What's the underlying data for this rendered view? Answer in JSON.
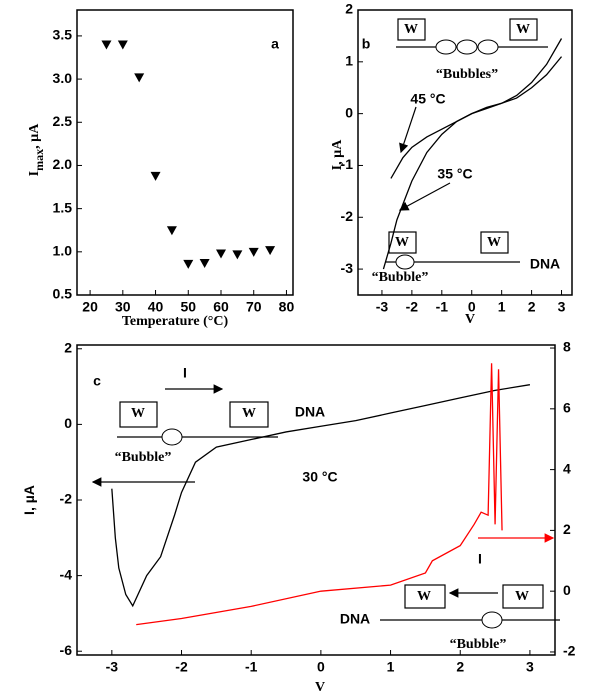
{
  "chart_data": [
    {
      "type": "scatter",
      "xlabel": "Temperature (°C)",
      "ylabel": "I",
      "ylabel_sub": "max",
      "ylabel_unit": ", µA",
      "annotations": [
        "a"
      ],
      "x": [
        25,
        30,
        35,
        40,
        45,
        50,
        55,
        60,
        65,
        70,
        75
      ],
      "values": [
        3.4,
        3.4,
        3.02,
        1.88,
        1.25,
        0.86,
        0.87,
        0.98,
        0.97,
        1.0,
        1.02
      ],
      "color": "#000000",
      "xlim": [
        16,
        82
      ],
      "xticks": [
        20,
        30,
        40,
        50,
        60,
        70,
        80
      ],
      "ylim": [
        0.5,
        3.8
      ],
      "yticks": [
        0.5,
        {
          "value": 1,
          "label": "1.0"
        },
        1.5,
        {
          "value": 2,
          "label": "2.0"
        },
        2.5,
        {
          "value": 3,
          "label": "3.0"
        },
        3.5
      ]
    },
    {
      "type": "line",
      "xlabel": "V",
      "ylabel": "I, µA",
      "annotations": [
        "b",
        "45 °C",
        "35 °C",
        "W",
        "W",
        "“Bubbles”",
        "W",
        "W",
        "“Bubble”",
        "DNA"
      ],
      "series": [
        {
          "name": "45 °C",
          "color": "#000000",
          "x": [
            -2.7,
            -2.5,
            -2.3,
            -2,
            -1.5,
            -1,
            -0.5,
            0,
            0.5,
            1,
            1.5,
            2,
            2.5,
            3
          ],
          "values": [
            -1.25,
            -1.05,
            -0.85,
            -0.65,
            -0.45,
            -0.3,
            -0.15,
            0,
            0.1,
            0.2,
            0.35,
            0.6,
            0.95,
            1.45
          ]
        },
        {
          "name": "35 °C",
          "color": "#000000",
          "x": [
            -2.95,
            -2.7,
            -2.5,
            -2.2,
            -2,
            -1.5,
            -1,
            -0.5,
            0,
            0.5,
            1,
            1.5,
            2,
            2.5,
            3
          ],
          "values": [
            -3,
            -2.5,
            -2.05,
            -1.6,
            -1.3,
            -0.75,
            -0.4,
            -0.15,
            0,
            0.12,
            0.2,
            0.3,
            0.5,
            0.75,
            1.1
          ]
        }
      ],
      "xlim": [
        -3.8,
        3.35
      ],
      "xticks": [
        -3,
        -2,
        -1,
        0,
        1,
        2,
        3
      ],
      "ylim": [
        -3.5,
        2
      ],
      "yticks": [
        -3,
        -2,
        -1,
        0,
        1,
        2
      ]
    },
    {
      "type": "line",
      "xlabel": "V",
      "ylabel": "I, µA",
      "annotations": [
        "c",
        "30 °C",
        "I",
        "W",
        "W",
        "DNA",
        "“Bubble”",
        "I",
        "W",
        "W",
        "DNA",
        "“Bubble”"
      ],
      "series": [
        {
          "name": "I (left)",
          "color": "#000000",
          "x": [
            -3,
            -2.95,
            -2.9,
            -2.8,
            -2.7,
            -2.5,
            -2.3,
            -2.1,
            -2,
            -1.8,
            -1.5,
            -1,
            -0.5,
            0,
            0.5,
            1,
            1.5,
            2,
            2.5,
            3
          ],
          "values": [
            -1.7,
            -3,
            -3.8,
            -4.5,
            -4.8,
            -4.0,
            -3.5,
            -2.4,
            -1.8,
            -1.0,
            -0.6,
            -0.4,
            -0.2,
            -0.05,
            0.1,
            0.3,
            0.5,
            0.7,
            0.9,
            1.05
          ]
        },
        {
          "name": "I (right)",
          "color": "#ff0000",
          "axis": "y2",
          "x": [
            -2.65,
            -2,
            -1,
            0,
            1,
            1.5,
            1.6,
            2,
            2.2,
            2.3,
            2.4,
            2.45,
            2.5,
            2.55,
            2.6
          ],
          "values": [
            -1.1,
            -0.9,
            -0.5,
            0,
            0.2,
            0.6,
            1.0,
            1.5,
            2.2,
            2.6,
            2.5,
            7.5,
            2.2,
            7.3,
            2.0
          ]
        }
      ],
      "xlim": [
        -3.5,
        3.36
      ],
      "xticks": [
        -3,
        -2,
        -1,
        0,
        1,
        2,
        3
      ],
      "ylim": [
        -6.1,
        2.1
      ],
      "yticks": [
        -6,
        -4,
        -2,
        0,
        2
      ],
      "y2lim": [
        -2.1,
        8.1
      ],
      "y2ticks": [
        -2,
        0,
        2,
        4,
        6,
        8
      ]
    }
  ]
}
